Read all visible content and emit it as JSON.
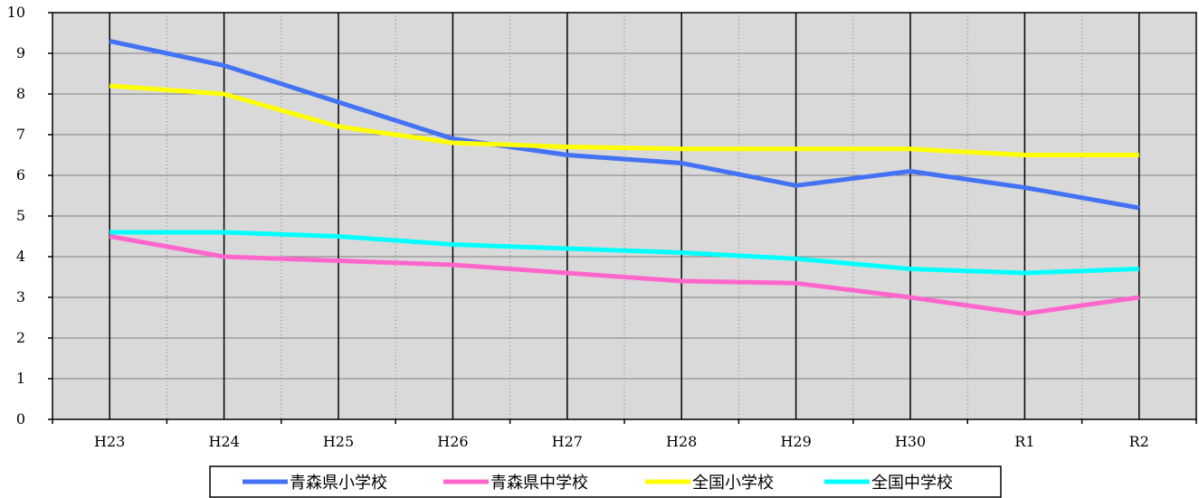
{
  "chart_data": {
    "type": "line",
    "title": "",
    "xlabel": "",
    "ylabel": "",
    "categories": [
      "H23",
      "H24",
      "H25",
      "H26",
      "H27",
      "H28",
      "H29",
      "H30",
      "R1",
      "R2"
    ],
    "ylim": [
      0,
      10
    ],
    "yticks": [
      0,
      1,
      2,
      3,
      4,
      5,
      6,
      7,
      8,
      9,
      10
    ],
    "grid": true,
    "legend_position": "bottom",
    "plot_background": "#d9d9d9",
    "series": [
      {
        "name": "青森県小学校",
        "color": "#4472f4",
        "values": [
          9.3,
          8.7,
          7.8,
          6.9,
          6.5,
          6.3,
          5.75,
          6.1,
          5.7,
          5.2
        ]
      },
      {
        "name": "青森県中学校",
        "color": "#ff66cc",
        "values": [
          4.5,
          4.0,
          3.9,
          3.8,
          3.6,
          3.4,
          3.35,
          3.0,
          2.6,
          3.0
        ]
      },
      {
        "name": "全国小学校",
        "color": "#ffff00",
        "values": [
          8.2,
          8.0,
          7.2,
          6.8,
          6.7,
          6.65,
          6.65,
          6.65,
          6.5,
          6.5
        ]
      },
      {
        "name": "全国中学校",
        "color": "#00ffff",
        "values": [
          4.6,
          4.6,
          4.5,
          4.3,
          4.2,
          4.1,
          3.95,
          3.7,
          3.6,
          3.7
        ]
      }
    ]
  }
}
